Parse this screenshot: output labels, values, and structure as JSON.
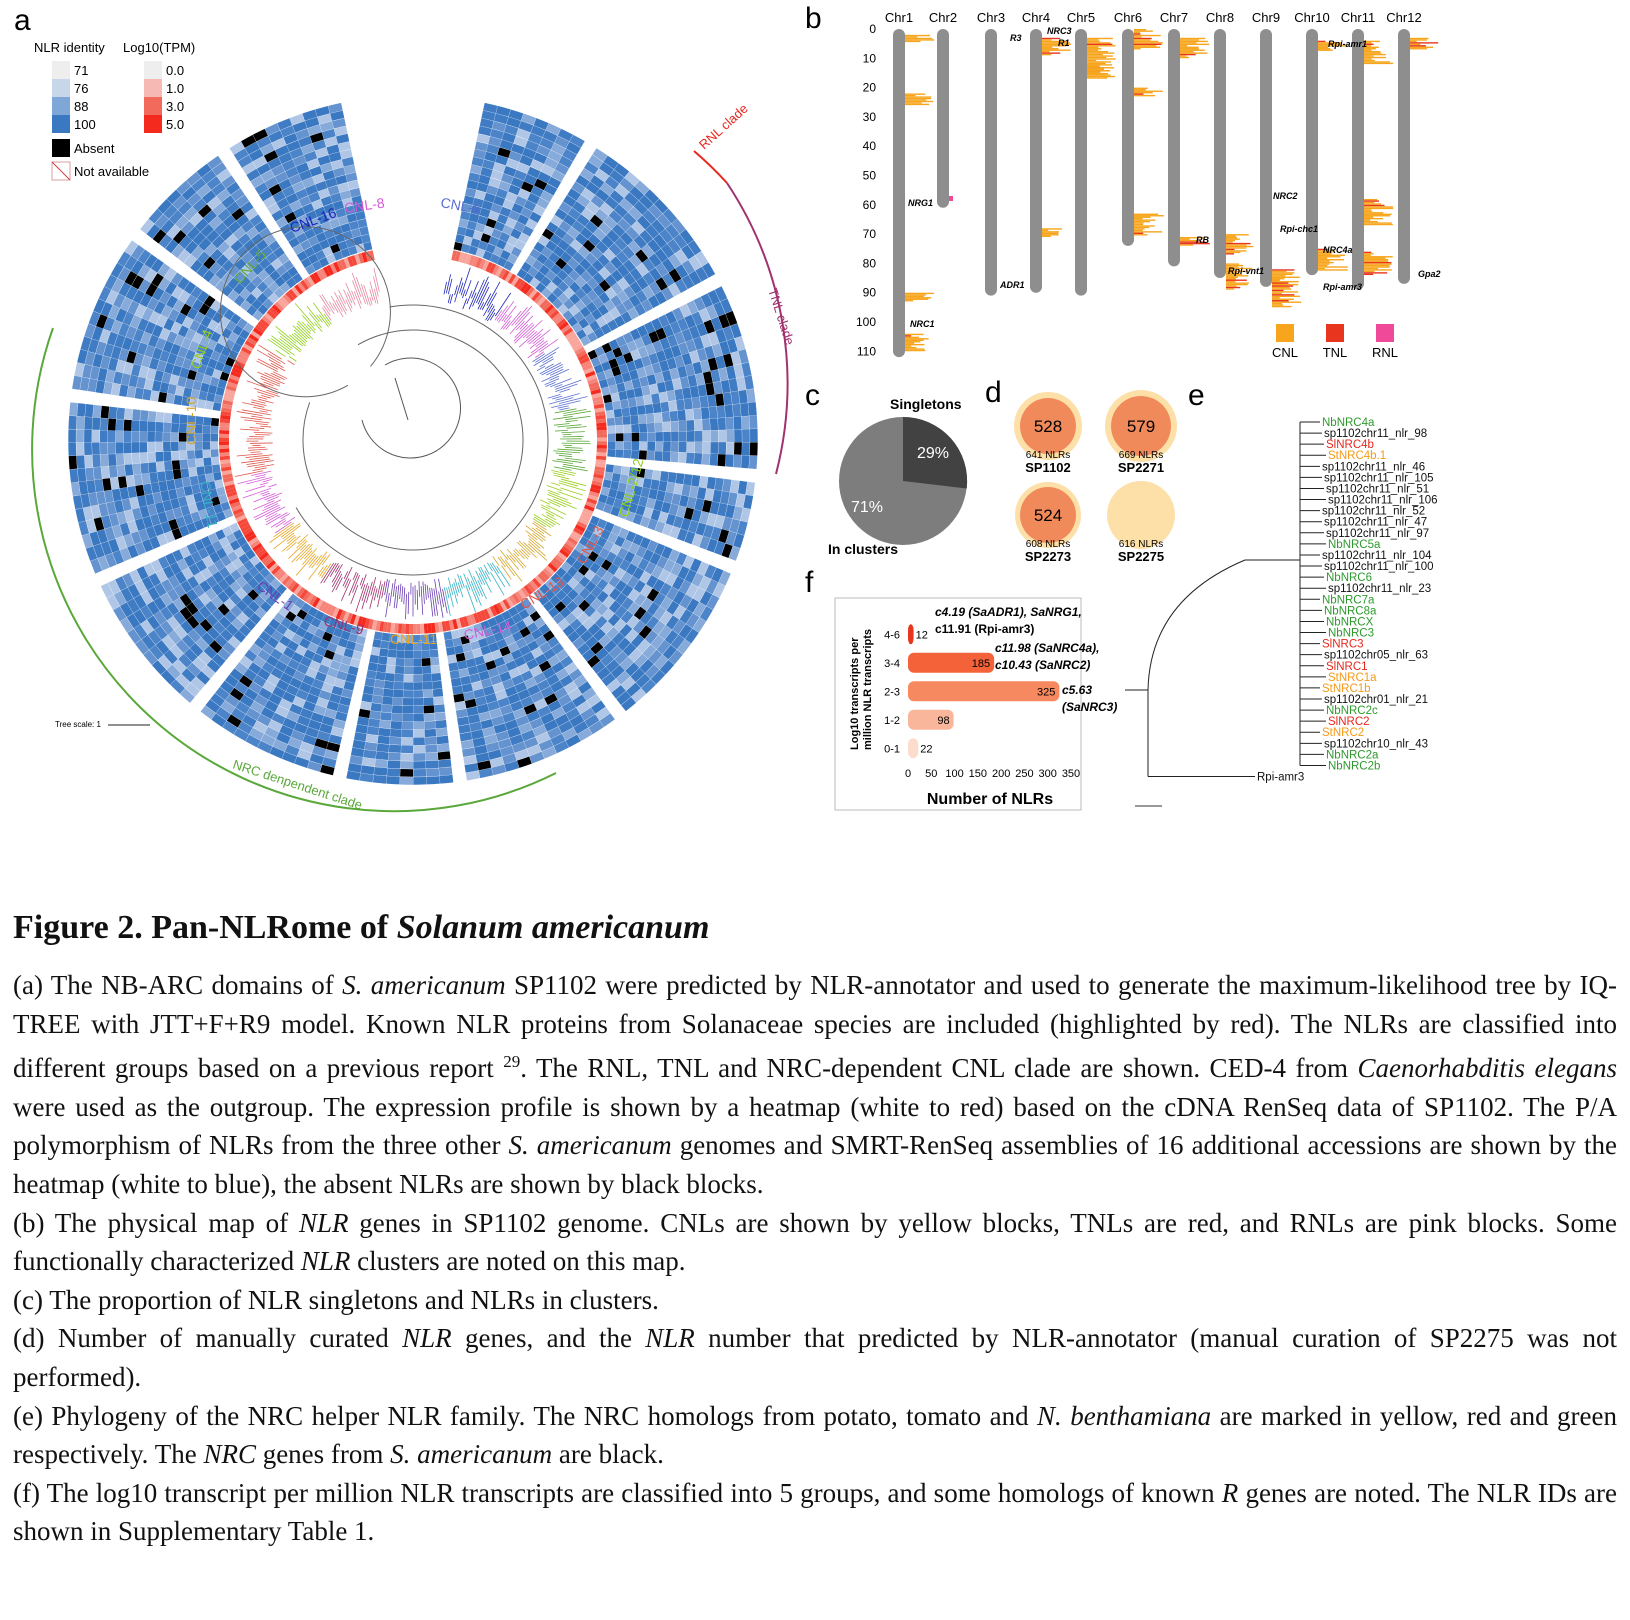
{
  "panels": {
    "a": {
      "letter": "a",
      "legend": {
        "identity_title": "NLR identity",
        "identity_levels": [
          "71",
          "76",
          "88",
          "100"
        ],
        "tpm_title": "Log10(TPM)",
        "tpm_levels": [
          "0.0",
          "1.0",
          "3.0",
          "5.0"
        ],
        "absent_label": "Absent",
        "na_label": "Not available"
      },
      "clades": {
        "rnl": "RNL clade",
        "tnl": "TNL clade",
        "nrc": "NRC denpendent clade"
      },
      "groups": [
        "CNL-16",
        "CNL-8",
        "CNL-6",
        "CNL-5",
        "CNL-4",
        "CNL-10",
        "CNL-11",
        "CNL-1",
        "CNL-9",
        "CNL-11",
        "CNL-14",
        "CNL-13",
        "CNL-3",
        "CNL-2/12"
      ],
      "tree_scale": "Tree scale: 1",
      "colors": {
        "identity_high": "#3a78c2",
        "identity_low": "#dfe8f3",
        "tpm_high": "#f52a1e",
        "absent": "#000000"
      }
    },
    "b": {
      "letter": "b",
      "chromosomes": [
        "Chr1",
        "Chr2",
        "Chr3",
        "Chr4",
        "Chr5",
        "Chr6",
        "Chr7",
        "Chr8",
        "Chr9",
        "Chr10",
        "Chr11",
        "Chr12"
      ],
      "y_ticks": [
        "0",
        "10",
        "20",
        "30",
        "40",
        "50",
        "60",
        "70",
        "80",
        "90",
        "100",
        "110"
      ],
      "gene_labels": [
        "NRG1",
        "NRC1",
        "R3",
        "ADR1",
        "NRC3",
        "R1",
        "RB",
        "Rpi-vnt1",
        "NRC2",
        "Rpi-chc1",
        "NRC4a",
        "Rpi-amr1",
        "Rpi-amr3",
        "Gpa2"
      ],
      "legend": [
        "CNL",
        "TNL",
        "RNL"
      ],
      "legend_colors": [
        "#f7a51c",
        "#e8361e",
        "#f0499a"
      ]
    },
    "c": {
      "letter": "c",
      "singletons_label": "Singletons",
      "clusters_label": "In clusters",
      "singletons_pct": "29%",
      "clusters_pct": "71%"
    },
    "d": {
      "letter": "d",
      "items": [
        {
          "curated": "528",
          "predicted": "641 NLRs",
          "name": "SP1102"
        },
        {
          "curated": "579",
          "predicted": "669 NLRs",
          "name": "SP2271"
        },
        {
          "curated": "524",
          "predicted": "608 NLRs",
          "name": "SP2273"
        },
        {
          "curated": "",
          "predicted": "616 NLRs",
          "name": "SP2275"
        }
      ]
    },
    "e": {
      "letter": "e",
      "leaves": [
        {
          "name": "NbNRC4a",
          "color": "#2e9a2e"
        },
        {
          "name": "sp1102chr11_nlr_98",
          "color": "#111111"
        },
        {
          "name": "SlNRC4b",
          "color": "#e8281e"
        },
        {
          "name": "StNRC4b.1",
          "color": "#f59a18"
        },
        {
          "name": "sp1102chr11_nlr_46",
          "color": "#111111"
        },
        {
          "name": "sp1102chr11_nlr_105",
          "color": "#111111"
        },
        {
          "name": "sp1102chr11_nlr_51",
          "color": "#111111"
        },
        {
          "name": "sp1102chr11_nlr_106",
          "color": "#111111"
        },
        {
          "name": "sp1102chr11_nlr_52",
          "color": "#111111"
        },
        {
          "name": "sp1102chr11_nlr_47",
          "color": "#111111"
        },
        {
          "name": "sp1102chr11_nlr_97",
          "color": "#111111"
        },
        {
          "name": "NbNRC5a",
          "color": "#2e9a2e"
        },
        {
          "name": "sp1102chr11_nlr_104",
          "color": "#111111"
        },
        {
          "name": "sp1102chr11_nlr_100",
          "color": "#111111"
        },
        {
          "name": "NbNRC6",
          "color": "#2e9a2e"
        },
        {
          "name": "sp1102chr11_nlr_23",
          "color": "#111111"
        },
        {
          "name": "NbNRC7a",
          "color": "#2e9a2e"
        },
        {
          "name": "NbNRC8a",
          "color": "#2e9a2e"
        },
        {
          "name": "NbNRCX",
          "color": "#2e9a2e"
        },
        {
          "name": "NbNRC3",
          "color": "#2e9a2e"
        },
        {
          "name": "SlNRC3",
          "color": "#e8281e"
        },
        {
          "name": "sp1102chr05_nlr_63",
          "color": "#111111"
        },
        {
          "name": "SlNRC1",
          "color": "#e8281e"
        },
        {
          "name": "StNRC1a",
          "color": "#f59a18"
        },
        {
          "name": "StNRC1b",
          "color": "#f59a18"
        },
        {
          "name": "sp1102chr01_nlr_21",
          "color": "#111111"
        },
        {
          "name": "NbNRC2c",
          "color": "#2e9a2e"
        },
        {
          "name": "SlNRC2",
          "color": "#e8281e"
        },
        {
          "name": "StNRC2",
          "color": "#f59a18"
        },
        {
          "name": "sp1102chr10_nlr_43",
          "color": "#111111"
        },
        {
          "name": "NbNRC2a",
          "color": "#2e9a2e"
        },
        {
          "name": "NbNRC2b",
          "color": "#2e9a2e"
        },
        {
          "name": "Rpi-amr3",
          "color": "#111111"
        }
      ]
    },
    "f": {
      "letter": "f",
      "ylabel_line1": "Log10 transcripts per",
      "ylabel_line2": "million NLR transcripts",
      "xlabel": "Number of NLRs",
      "annotations": [
        "c4.19 (SaADR1), SaNRG1,",
        "c11.91 (Rpi-amr3)",
        "c11.98 (SaNRC4a),",
        "c10.43 (SaNRC2)",
        "c5.63",
        "(SaNRC3)"
      ]
    }
  },
  "chart_data": {
    "type": "bar",
    "orientation": "horizontal",
    "categories": [
      "4-6",
      "3-4",
      "2-3",
      "1-2",
      "0-1"
    ],
    "values": [
      12,
      185,
      325,
      98,
      22
    ],
    "xlabel": "Number of NLRs",
    "ylabel": "Log10 transcripts per million NLR transcripts",
    "xticks": [
      "0",
      "50",
      "100",
      "150",
      "200",
      "250",
      "300",
      "350"
    ],
    "xlim": [
      0,
      350
    ],
    "colors": [
      "#e8361e",
      "#f4623a",
      "#f6895f",
      "#f9b69a",
      "#fcdccd"
    ]
  },
  "caption": {
    "title_prefix": "Figure 2. Pan-NLRome of ",
    "title_italic": "Solanum americanum",
    "a_1": "(a)  The NB-ARC domains of ",
    "a_2": "S. americanum",
    "a_3": " SP1102 were predicted by NLR-annotator and used to generate the maximum-likelihood tree by IQ-TREE with JTT+F+R9 model. Known NLR proteins from Solanaceae species are included (highlighted by red). The NLRs are classified into different groups based on a previous report ",
    "a_ref": "29",
    "a_4": ".  The RNL, TNL and NRC-dependent CNL clade are shown. CED-4 from ",
    "a_5": "Caenorhabditis elegans",
    "a_6": " were used as the outgroup. The expression profile is shown by a heatmap (white to red) based on the cDNA RenSeq data of SP1102. The P/A polymorphism of NLRs from the three other ",
    "a_7": "S. americanum",
    "a_8": " genomes and SMRT-RenSeq assemblies of 16 additional accessions are shown by the heatmap (white to blue), the absent NLRs are shown by black blocks.",
    "b_1": "(b) The physical map of ",
    "b_2": "NLR",
    "b_3": " genes in SP1102 genome. CNLs are shown by yellow blocks, TNLs are red, and RNLs are pink blocks. Some functionally characterized ",
    "b_4": "NLR",
    "b_5": " clusters are noted on this map.",
    "c": "(c) The proportion of NLR singletons and NLRs in clusters.",
    "d_1": "(d) Number of manually curated ",
    "d_2": "NLR",
    "d_3": " genes, and the ",
    "d_4": "NLR",
    "d_5": " number that predicted by NLR-annotator (manual curation of SP2275 was not performed).",
    "e_1": "(e) Phylogeny of the NRC helper NLR family. The NRC homologs from potato, tomato and ",
    "e_2": "N. benthamiana",
    "e_3": " are marked in yellow, red and green respectively. The ",
    "e_4": "NRC",
    "e_5": " genes from ",
    "e_6": "S. americanum",
    "e_7": " are black.",
    "f_1": "(f) The log10 transcript per million NLR transcripts are classified into 5 groups, and some homologs of known ",
    "f_2": "R",
    "f_3": " genes are noted. The NLR IDs are shown in Supplementary Table 1."
  }
}
